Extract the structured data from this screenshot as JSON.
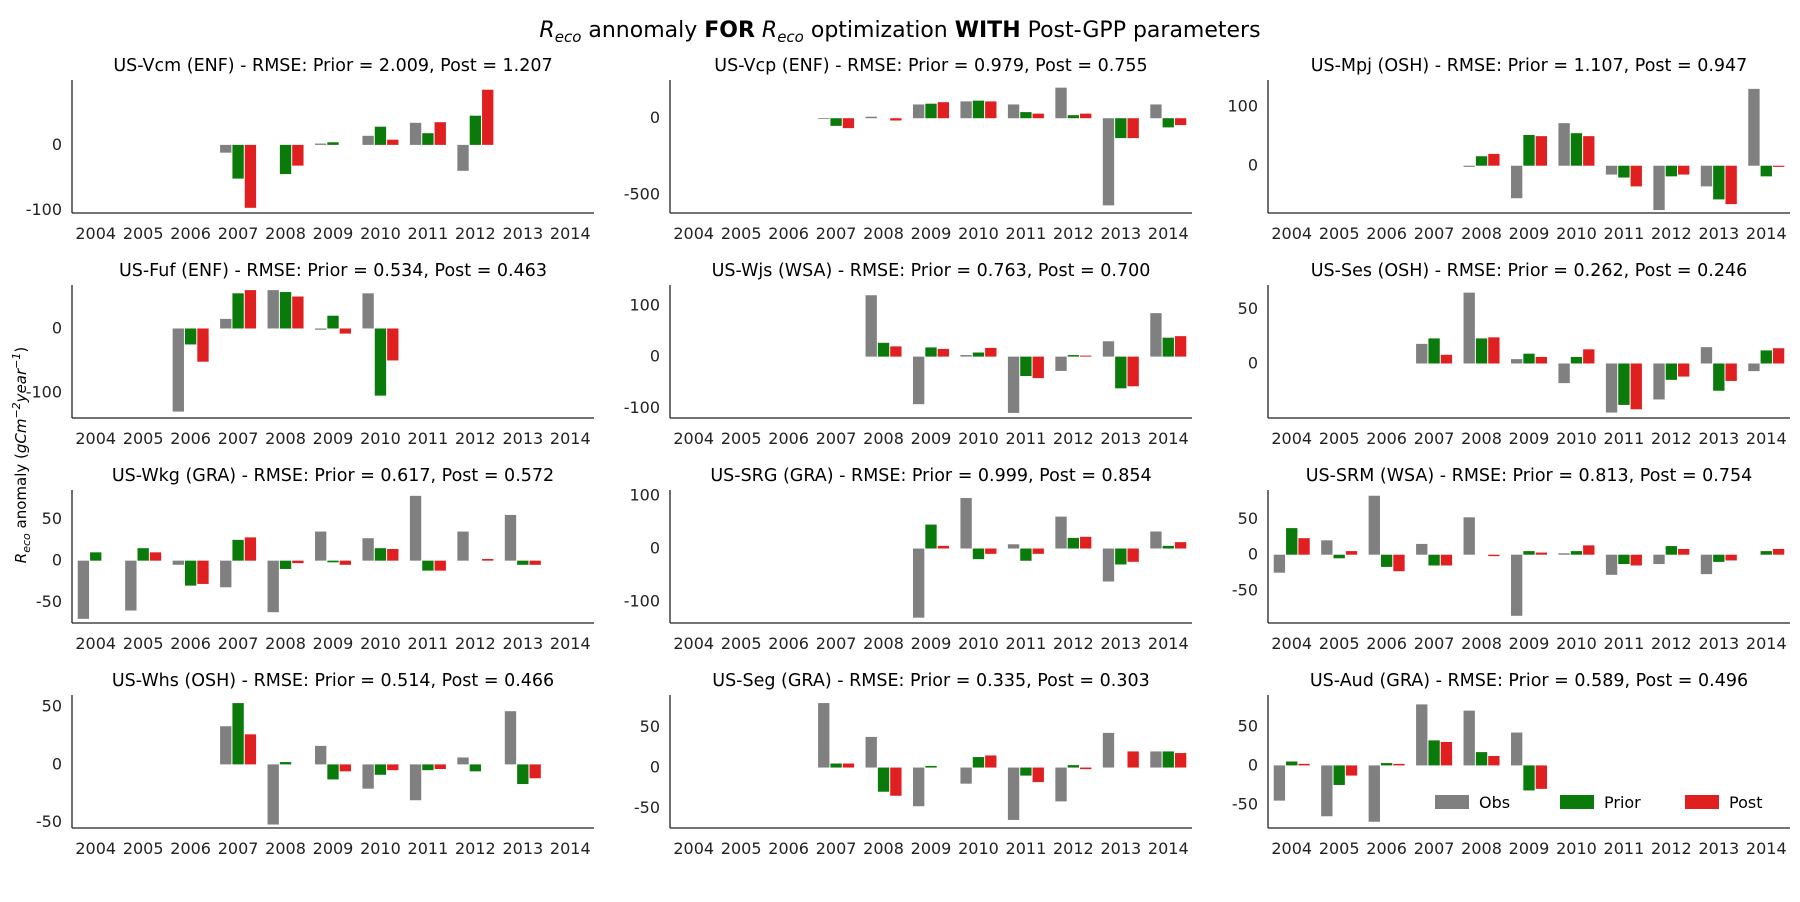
{
  "figure": {
    "title_symbol": "R",
    "title_subscript": "eco",
    "title_mid1": " annomaly ",
    "title_bold1": "FOR",
    "title_mid2": " optimization ",
    "title_bold2": "WITH",
    "title_end": " Post-GPP parameters",
    "ylabel_symbol": "R",
    "ylabel_subscript": "eco",
    "ylabel_text": " anomaly (",
    "ylabel_unit_a": "gCm",
    "ylabel_unit_exp_a": "−2",
    "ylabel_unit_b": "year",
    "ylabel_unit_exp_b": "−1",
    "ylabel_close": ")"
  },
  "colors": {
    "obs": "#808080",
    "prior": "#0a7a0a",
    "post": "#e02020"
  },
  "legend": {
    "obs": "Obs",
    "prior": "Prior",
    "post": "Post"
  },
  "chart_data": [
    {
      "type": "bar",
      "title": "US-Vcm (ENF) - RMSE: Prior = 2.009, Post = 1.207",
      "categories": [
        "2004",
        "2005",
        "2006",
        "2007",
        "2008",
        "2009",
        "2010",
        "2011",
        "2012",
        "2013",
        "2014"
      ],
      "ylim": [
        -105,
        100
      ],
      "yticks": [
        -100,
        0
      ],
      "series": [
        {
          "name": "Obs",
          "values": [
            null,
            null,
            null,
            -12,
            null,
            2,
            14,
            34,
            -40,
            null,
            null
          ]
        },
        {
          "name": "Prior",
          "values": [
            null,
            null,
            null,
            -52,
            -45,
            4,
            28,
            18,
            45,
            null,
            null
          ]
        },
        {
          "name": "Post",
          "values": [
            null,
            null,
            null,
            -97,
            -32,
            null,
            8,
            35,
            85,
            null,
            null
          ]
        }
      ]
    },
    {
      "type": "bar",
      "title": "US-Vcp (ENF) - RMSE: Prior = 0.979, Post = 0.755",
      "categories": [
        "2004",
        "2005",
        "2006",
        "2007",
        "2008",
        "2009",
        "2010",
        "2011",
        "2012",
        "2013",
        "2014"
      ],
      "ylim": [
        -620,
        250
      ],
      "yticks": [
        -500,
        0
      ],
      "series": [
        {
          "name": "Obs",
          "values": [
            null,
            null,
            null,
            -5,
            10,
            90,
            110,
            90,
            200,
            -570,
            90
          ]
        },
        {
          "name": "Prior",
          "values": [
            null,
            null,
            null,
            -50,
            null,
            95,
            115,
            40,
            20,
            -130,
            -60
          ]
        },
        {
          "name": "Post",
          "values": [
            null,
            null,
            null,
            -65,
            -15,
            105,
            110,
            30,
            30,
            -130,
            -45
          ]
        }
      ]
    },
    {
      "type": "bar",
      "title": "US-Mpj (OSH) - RMSE: Prior = 1.107, Post = 0.947",
      "categories": [
        "2004",
        "2005",
        "2006",
        "2007",
        "2008",
        "2009",
        "2010",
        "2011",
        "2012",
        "2013",
        "2014"
      ],
      "ylim": [
        -80,
        145
      ],
      "yticks": [
        0,
        100
      ],
      "series": [
        {
          "name": "Obs",
          "values": [
            null,
            null,
            null,
            null,
            -2,
            -55,
            72,
            -15,
            -75,
            -35,
            130
          ]
        },
        {
          "name": "Prior",
          "values": [
            null,
            null,
            null,
            null,
            16,
            52,
            55,
            -20,
            -18,
            -57,
            -18
          ]
        },
        {
          "name": "Post",
          "values": [
            null,
            null,
            null,
            null,
            20,
            50,
            50,
            -35,
            -15,
            -65,
            -2
          ]
        }
      ]
    },
    {
      "type": "bar",
      "title": "US-Fuf (ENF) - RMSE: Prior = 0.534, Post = 0.463",
      "categories": [
        "2004",
        "2005",
        "2006",
        "2007",
        "2008",
        "2009",
        "2010",
        "2011",
        "2012",
        "2013",
        "2014"
      ],
      "ylim": [
        -140,
        68
      ],
      "yticks": [
        -100,
        0
      ],
      "series": [
        {
          "name": "Obs",
          "values": [
            null,
            null,
            -130,
            15,
            60,
            -2,
            55,
            null,
            null,
            null,
            null
          ]
        },
        {
          "name": "Prior",
          "values": [
            null,
            null,
            -25,
            55,
            57,
            20,
            -105,
            null,
            null,
            null,
            null
          ]
        },
        {
          "name": "Post",
          "values": [
            null,
            null,
            -52,
            60,
            50,
            -8,
            -50,
            null,
            null,
            null,
            null
          ]
        }
      ]
    },
    {
      "type": "bar",
      "title": "US-Wjs (WSA) - RMSE: Prior = 0.763, Post = 0.700",
      "categories": [
        "2004",
        "2005",
        "2006",
        "2007",
        "2008",
        "2009",
        "2010",
        "2011",
        "2012",
        "2013",
        "2014"
      ],
      "ylim": [
        -120,
        140
      ],
      "yticks": [
        -100,
        0,
        100
      ],
      "series": [
        {
          "name": "Obs",
          "values": [
            null,
            null,
            null,
            null,
            120,
            -93,
            3,
            -110,
            -28,
            30,
            85
          ]
        },
        {
          "name": "Prior",
          "values": [
            null,
            null,
            null,
            null,
            27,
            18,
            8,
            -38,
            3,
            -62,
            37
          ]
        },
        {
          "name": "Post",
          "values": [
            null,
            null,
            null,
            null,
            20,
            15,
            17,
            -42,
            2,
            -58,
            40
          ]
        }
      ]
    },
    {
      "type": "bar",
      "title": "US-Ses (OSH) - RMSE: Prior = 0.262, Post = 0.246",
      "categories": [
        "2004",
        "2005",
        "2006",
        "2007",
        "2008",
        "2009",
        "2010",
        "2011",
        "2012",
        "2013",
        "2014"
      ],
      "ylim": [
        -50,
        72
      ],
      "yticks": [
        0,
        50
      ],
      "series": [
        {
          "name": "Obs",
          "values": [
            null,
            null,
            null,
            18,
            65,
            4,
            -18,
            -45,
            -33,
            15,
            -7
          ]
        },
        {
          "name": "Prior",
          "values": [
            null,
            null,
            null,
            23,
            23,
            9,
            6,
            -38,
            -15,
            -25,
            12
          ]
        },
        {
          "name": "Post",
          "values": [
            null,
            null,
            null,
            8,
            24,
            6,
            13,
            -42,
            -12,
            -16,
            14
          ]
        }
      ]
    },
    {
      "type": "bar",
      "title": "US-Wkg (GRA) - RMSE: Prior = 0.617, Post = 0.572",
      "categories": [
        "2004",
        "2005",
        "2006",
        "2007",
        "2008",
        "2009",
        "2010",
        "2011",
        "2012",
        "2013",
        "2014"
      ],
      "ylim": [
        -75,
        85
      ],
      "yticks": [
        -50,
        0,
        50
      ],
      "series": [
        {
          "name": "Obs",
          "values": [
            -70,
            -60,
            -5,
            -32,
            -62,
            35,
            27,
            78,
            35,
            55,
            null
          ]
        },
        {
          "name": "Prior",
          "values": [
            10,
            15,
            -30,
            25,
            -10,
            -2,
            15,
            -12,
            null,
            -5,
            null
          ]
        },
        {
          "name": "Post",
          "values": [
            null,
            10,
            -28,
            28,
            -3,
            -5,
            14,
            -12,
            2,
            -5,
            null
          ]
        }
      ]
    },
    {
      "type": "bar",
      "title": "US-SRG (GRA) - RMSE: Prior = 0.999, Post = 0.854",
      "categories": [
        "2004",
        "2005",
        "2006",
        "2007",
        "2008",
        "2009",
        "2010",
        "2011",
        "2012",
        "2013",
        "2014"
      ],
      "ylim": [
        -140,
        110
      ],
      "yticks": [
        -100,
        0,
        100
      ],
      "series": [
        {
          "name": "Obs",
          "values": [
            null,
            null,
            null,
            null,
            null,
            -130,
            95,
            8,
            60,
            -62,
            32
          ]
        },
        {
          "name": "Prior",
          "values": [
            null,
            null,
            null,
            null,
            null,
            45,
            -20,
            -23,
            20,
            -30,
            5
          ]
        },
        {
          "name": "Post",
          "values": [
            null,
            null,
            null,
            null,
            null,
            5,
            -10,
            -10,
            22,
            -25,
            12
          ]
        }
      ]
    },
    {
      "type": "bar",
      "title": "US-SRM (WSA) - RMSE: Prior = 0.813, Post = 0.754",
      "categories": [
        "2004",
        "2005",
        "2006",
        "2007",
        "2008",
        "2009",
        "2010",
        "2011",
        "2012",
        "2013",
        "2014"
      ],
      "ylim": [
        -95,
        90
      ],
      "yticks": [
        -50,
        0,
        50
      ],
      "series": [
        {
          "name": "Obs",
          "values": [
            -25,
            20,
            82,
            15,
            52,
            -85,
            2,
            -28,
            -13,
            -27,
            null
          ]
        },
        {
          "name": "Prior",
          "values": [
            37,
            -5,
            -17,
            -15,
            null,
            5,
            5,
            -13,
            12,
            -10,
            5
          ]
        },
        {
          "name": "Post",
          "values": [
            23,
            5,
            -23,
            -15,
            -2,
            3,
            13,
            -15,
            8,
            -8,
            8
          ]
        }
      ]
    },
    {
      "type": "bar",
      "title": "US-Whs (OSH) - RMSE: Prior = 0.514, Post = 0.466",
      "categories": [
        "2004",
        "2005",
        "2006",
        "2007",
        "2008",
        "2009",
        "2010",
        "2011",
        "2012",
        "2013",
        "2014"
      ],
      "ylim": [
        -55,
        60
      ],
      "yticks": [
        -50,
        0,
        50
      ],
      "series": [
        {
          "name": "Obs",
          "values": [
            null,
            null,
            null,
            33,
            -52,
            16,
            -21,
            -31,
            6,
            46,
            null
          ]
        },
        {
          "name": "Prior",
          "values": [
            null,
            null,
            null,
            53,
            2,
            -13,
            -9,
            -5,
            -6,
            -17,
            null
          ]
        },
        {
          "name": "Post",
          "values": [
            null,
            null,
            null,
            26,
            null,
            -6,
            -5,
            -4,
            null,
            -12,
            null
          ]
        }
      ]
    },
    {
      "type": "bar",
      "title": "US-Seg (GRA) - RMSE: Prior = 0.335, Post = 0.303",
      "categories": [
        "2004",
        "2005",
        "2006",
        "2007",
        "2008",
        "2009",
        "2010",
        "2011",
        "2012",
        "2013",
        "2014"
      ],
      "ylim": [
        -75,
        90
      ],
      "yticks": [
        -50,
        0,
        50
      ],
      "series": [
        {
          "name": "Obs",
          "values": [
            null,
            null,
            null,
            80,
            38,
            -48,
            -20,
            -65,
            -42,
            43,
            20
          ]
        },
        {
          "name": "Prior",
          "values": [
            null,
            null,
            null,
            5,
            -30,
            2,
            13,
            -10,
            3,
            null,
            20
          ]
        },
        {
          "name": "Post",
          "values": [
            null,
            null,
            null,
            5,
            -35,
            null,
            15,
            -18,
            -2,
            20,
            18
          ]
        }
      ]
    },
    {
      "type": "bar",
      "title": "US-Aud (GRA) - RMSE: Prior = 0.589, Post = 0.496",
      "categories": [
        "2004",
        "2005",
        "2006",
        "2007",
        "2008",
        "2009",
        "2010",
        "2011",
        "2012",
        "2013",
        "2014"
      ],
      "ylim": [
        -80,
        90
      ],
      "yticks": [
        -50,
        0,
        50
      ],
      "series": [
        {
          "name": "Obs",
          "values": [
            -45,
            -65,
            -72,
            78,
            70,
            42,
            null,
            null,
            null,
            null,
            null
          ]
        },
        {
          "name": "Prior",
          "values": [
            5,
            -25,
            3,
            32,
            17,
            -32,
            null,
            null,
            null,
            null,
            null
          ]
        },
        {
          "name": "Post",
          "values": [
            2,
            -13,
            2,
            30,
            12,
            -30,
            null,
            null,
            null,
            null,
            null
          ]
        }
      ]
    }
  ]
}
